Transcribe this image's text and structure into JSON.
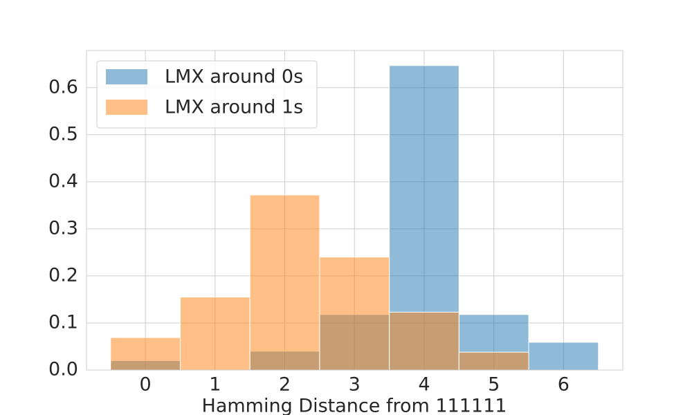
{
  "chart_data": {
    "type": "histogram",
    "xlabel": "Hamming Distance from 111111",
    "bins": [
      -0.5,
      0.5,
      1.5,
      2.5,
      3.5,
      4.5,
      5.5,
      6.5
    ],
    "series": [
      {
        "name": "LMX around 0s",
        "color": "#1f77b4",
        "values": [
          0.02,
          0,
          0.04,
          0.118,
          0.647,
          0.118,
          0.059
        ]
      },
      {
        "name": "LMX around 1s",
        "color": "#ff7f0e",
        "values": [
          0.069,
          0.155,
          0.372,
          0.24,
          0.123,
          0.038,
          0
        ]
      }
    ],
    "opacity": 0.5,
    "xlim": [
      -0.845,
      6.85
    ],
    "xticks": [
      0,
      1,
      2,
      3,
      4,
      5,
      6
    ],
    "ylim": [
      0,
      0.679
    ],
    "yticks": [
      {
        "value": 0,
        "label": "0.0"
      },
      0.1,
      0.2,
      0.3,
      0.4,
      0.5,
      0.6
    ],
    "grid": true,
    "legend": "upper left"
  }
}
